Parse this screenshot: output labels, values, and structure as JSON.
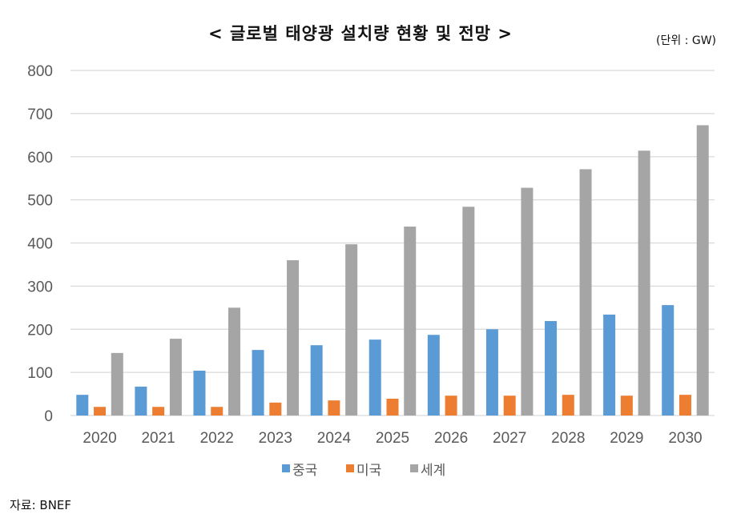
{
  "chart_data": {
    "type": "bar",
    "title": "< 글로벌 태양광 설치량 현황 및 전망 >",
    "unit": "(단위 : GW)",
    "source": "자료:  BNEF",
    "categories": [
      "2020",
      "2021",
      "2022",
      "2023",
      "2024",
      "2025",
      "2026",
      "2027",
      "2028",
      "2029",
      "2030"
    ],
    "series": [
      {
        "name": "중국",
        "color": "#5B9BD5",
        "values": [
          48,
          67,
          104,
          152,
          163,
          176,
          187,
          200,
          219,
          234,
          256
        ]
      },
      {
        "name": "미국",
        "color": "#ED7D31",
        "values": [
          20,
          20,
          20,
          30,
          35,
          39,
          46,
          46,
          48,
          46,
          48
        ]
      },
      {
        "name": "세계",
        "color": "#A5A5A5",
        "values": [
          145,
          178,
          250,
          360,
          397,
          438,
          484,
          528,
          571,
          614,
          673
        ]
      }
    ],
    "ylim": [
      0,
      800
    ],
    "yticks": [
      "0",
      "100",
      "200",
      "300",
      "400",
      "500",
      "600",
      "700",
      "800"
    ],
    "grid": true,
    "legend": "bottom"
  }
}
